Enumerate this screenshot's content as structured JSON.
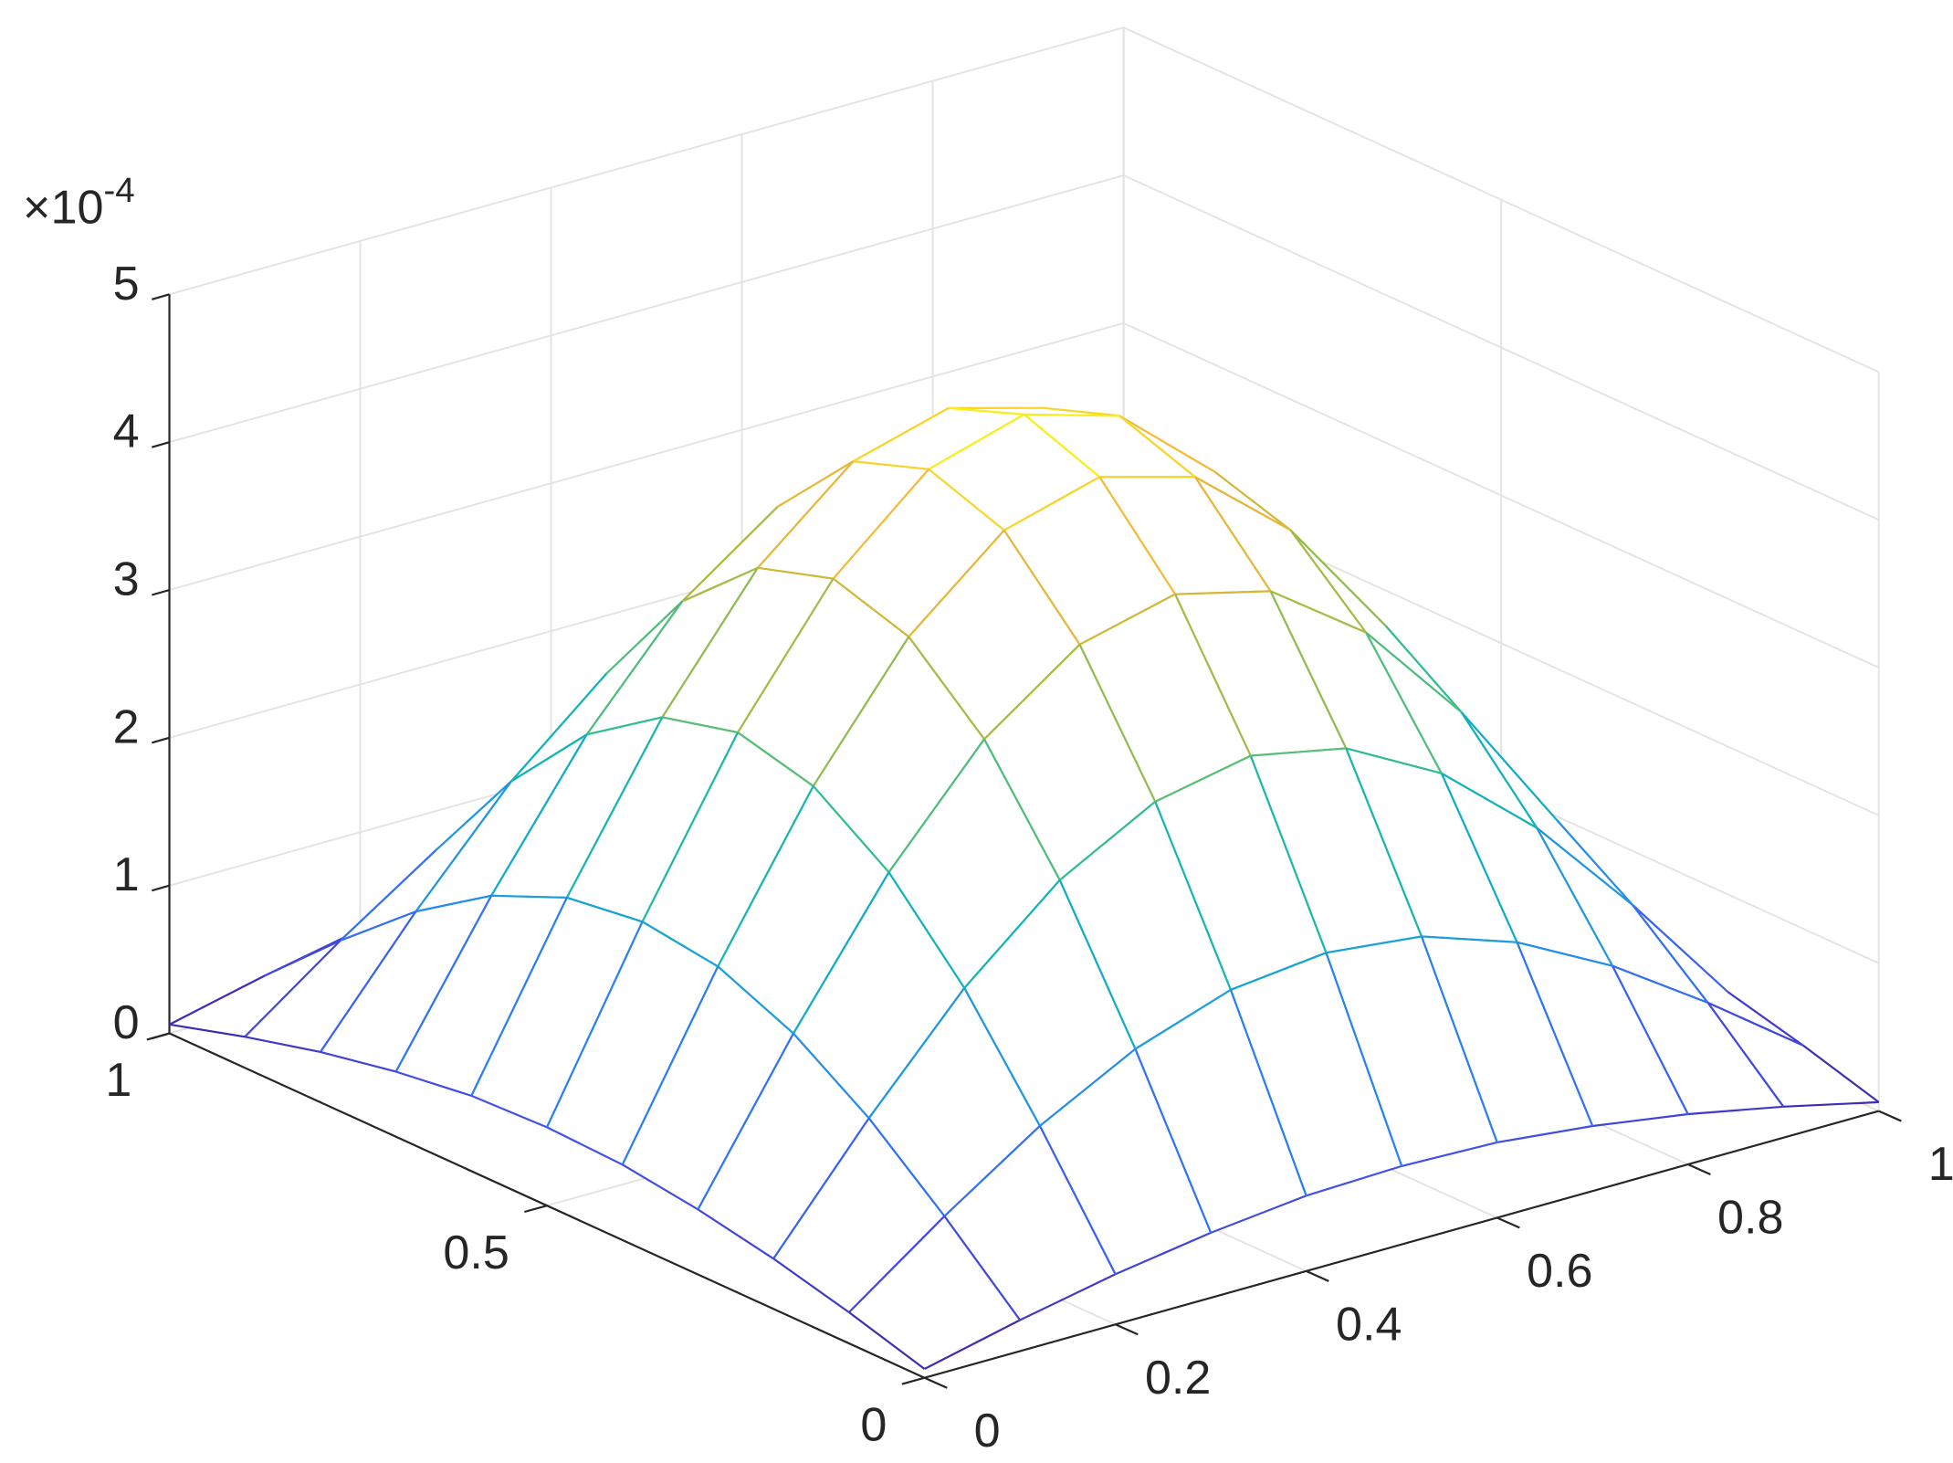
{
  "chart_data": {
    "type": "surface",
    "x": [
      0,
      0.1,
      0.2,
      0.3,
      0.4,
      0.5,
      0.6,
      0.7,
      0.8,
      0.9,
      1
    ],
    "y": [
      0,
      0.1,
      0.2,
      0.3,
      0.4,
      0.5,
      0.6,
      0.7,
      0.8,
      0.9,
      1
    ],
    "z": [
      [
        0.06,
        0.21,
        0.34,
        0.44,
        0.51,
        0.53,
        0.51,
        0.44,
        0.34,
        0.21,
        0.06
      ],
      [
        0.21,
        0.68,
        1.11,
        1.45,
        1.67,
        1.74,
        1.67,
        1.45,
        1.11,
        0.68,
        0.21
      ],
      [
        0.34,
        1.11,
        1.81,
        2.36,
        2.71,
        2.84,
        2.71,
        2.36,
        1.81,
        1.11,
        0.34
      ],
      [
        0.44,
        1.45,
        2.36,
        3.08,
        3.54,
        3.7,
        3.54,
        3.08,
        2.36,
        1.45,
        0.44
      ],
      [
        0.51,
        1.67,
        2.71,
        3.54,
        4.08,
        4.26,
        4.08,
        3.54,
        2.71,
        1.67,
        0.51
      ],
      [
        0.53,
        1.74,
        2.84,
        3.7,
        4.26,
        4.45,
        4.26,
        3.7,
        2.84,
        1.74,
        0.53
      ],
      [
        0.51,
        1.67,
        2.71,
        3.54,
        4.08,
        4.26,
        4.08,
        3.54,
        2.71,
        1.67,
        0.51
      ],
      [
        0.44,
        1.45,
        2.36,
        3.08,
        3.54,
        3.7,
        3.54,
        3.08,
        2.36,
        1.45,
        0.44
      ],
      [
        0.34,
        1.11,
        1.81,
        2.36,
        2.71,
        2.84,
        2.71,
        2.36,
        1.81,
        1.11,
        0.34
      ],
      [
        0.21,
        0.68,
        1.11,
        1.45,
        1.67,
        1.74,
        1.67,
        1.45,
        1.11,
        0.68,
        0.21
      ],
      [
        0.06,
        0.21,
        0.34,
        0.44,
        0.51,
        0.53,
        0.51,
        0.44,
        0.34,
        0.21,
        0.06
      ]
    ],
    "xlim": [
      0,
      1
    ],
    "xticks": [
      0,
      0.2,
      0.4,
      0.6,
      0.8,
      1
    ],
    "ylim": [
      0,
      1
    ],
    "yticks": [
      0,
      0.5,
      1
    ],
    "zlim": [
      0,
      5
    ],
    "zticks": [
      0,
      1,
      2,
      3,
      4,
      5
    ],
    "z_multiplier": {
      "base": "×10",
      "exponent": "-4"
    },
    "grid": true,
    "colormap": [
      "#3e26a8",
      "#4253f0",
      "#2d7cf4",
      "#1e9bdf",
      "#0eb1be",
      "#2bbd95",
      "#7dbe5d",
      "#c3b73a",
      "#f5b93a",
      "#f9fb15"
    ]
  }
}
